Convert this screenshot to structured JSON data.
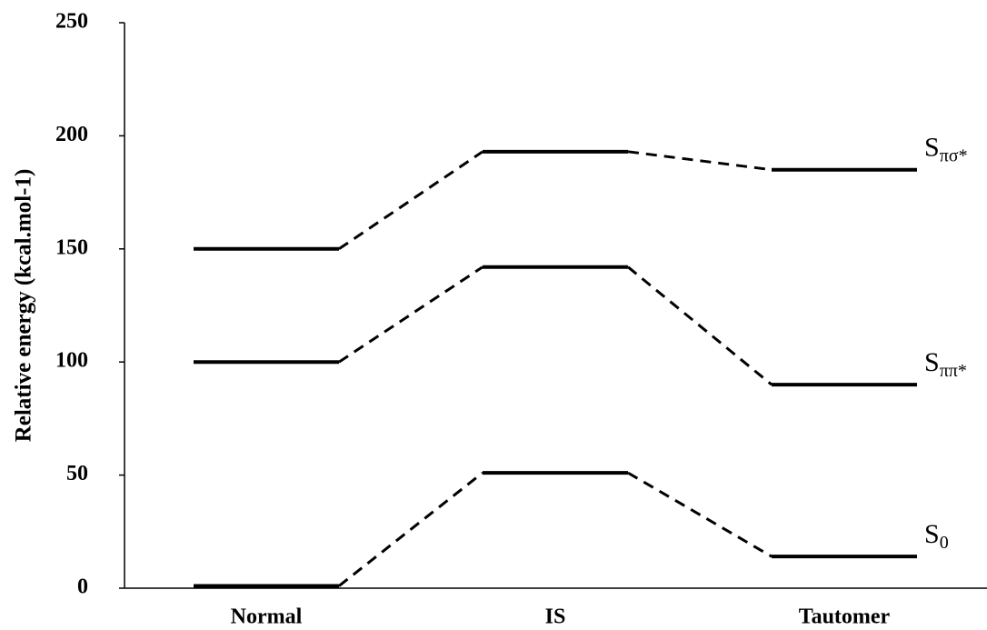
{
  "chart_data": {
    "type": "energy-levels",
    "y_label": "Relative energy (kcal.mol-1)",
    "categories": [
      "Normal",
      "IS",
      "Tautomer"
    ],
    "series": [
      {
        "name": "S0",
        "color": "#000000",
        "values": [
          1,
          51,
          14
        ]
      },
      {
        "name": "Sππ*",
        "color": "#000000",
        "values": [
          100,
          142,
          90
        ]
      },
      {
        "name": "Sπσ*",
        "color": "#000000",
        "values": [
          150,
          193,
          185
        ]
      }
    ],
    "ylim": [
      0,
      250
    ],
    "yticks": [
      0,
      50,
      100,
      150,
      200,
      250
    ],
    "grid": false
  }
}
